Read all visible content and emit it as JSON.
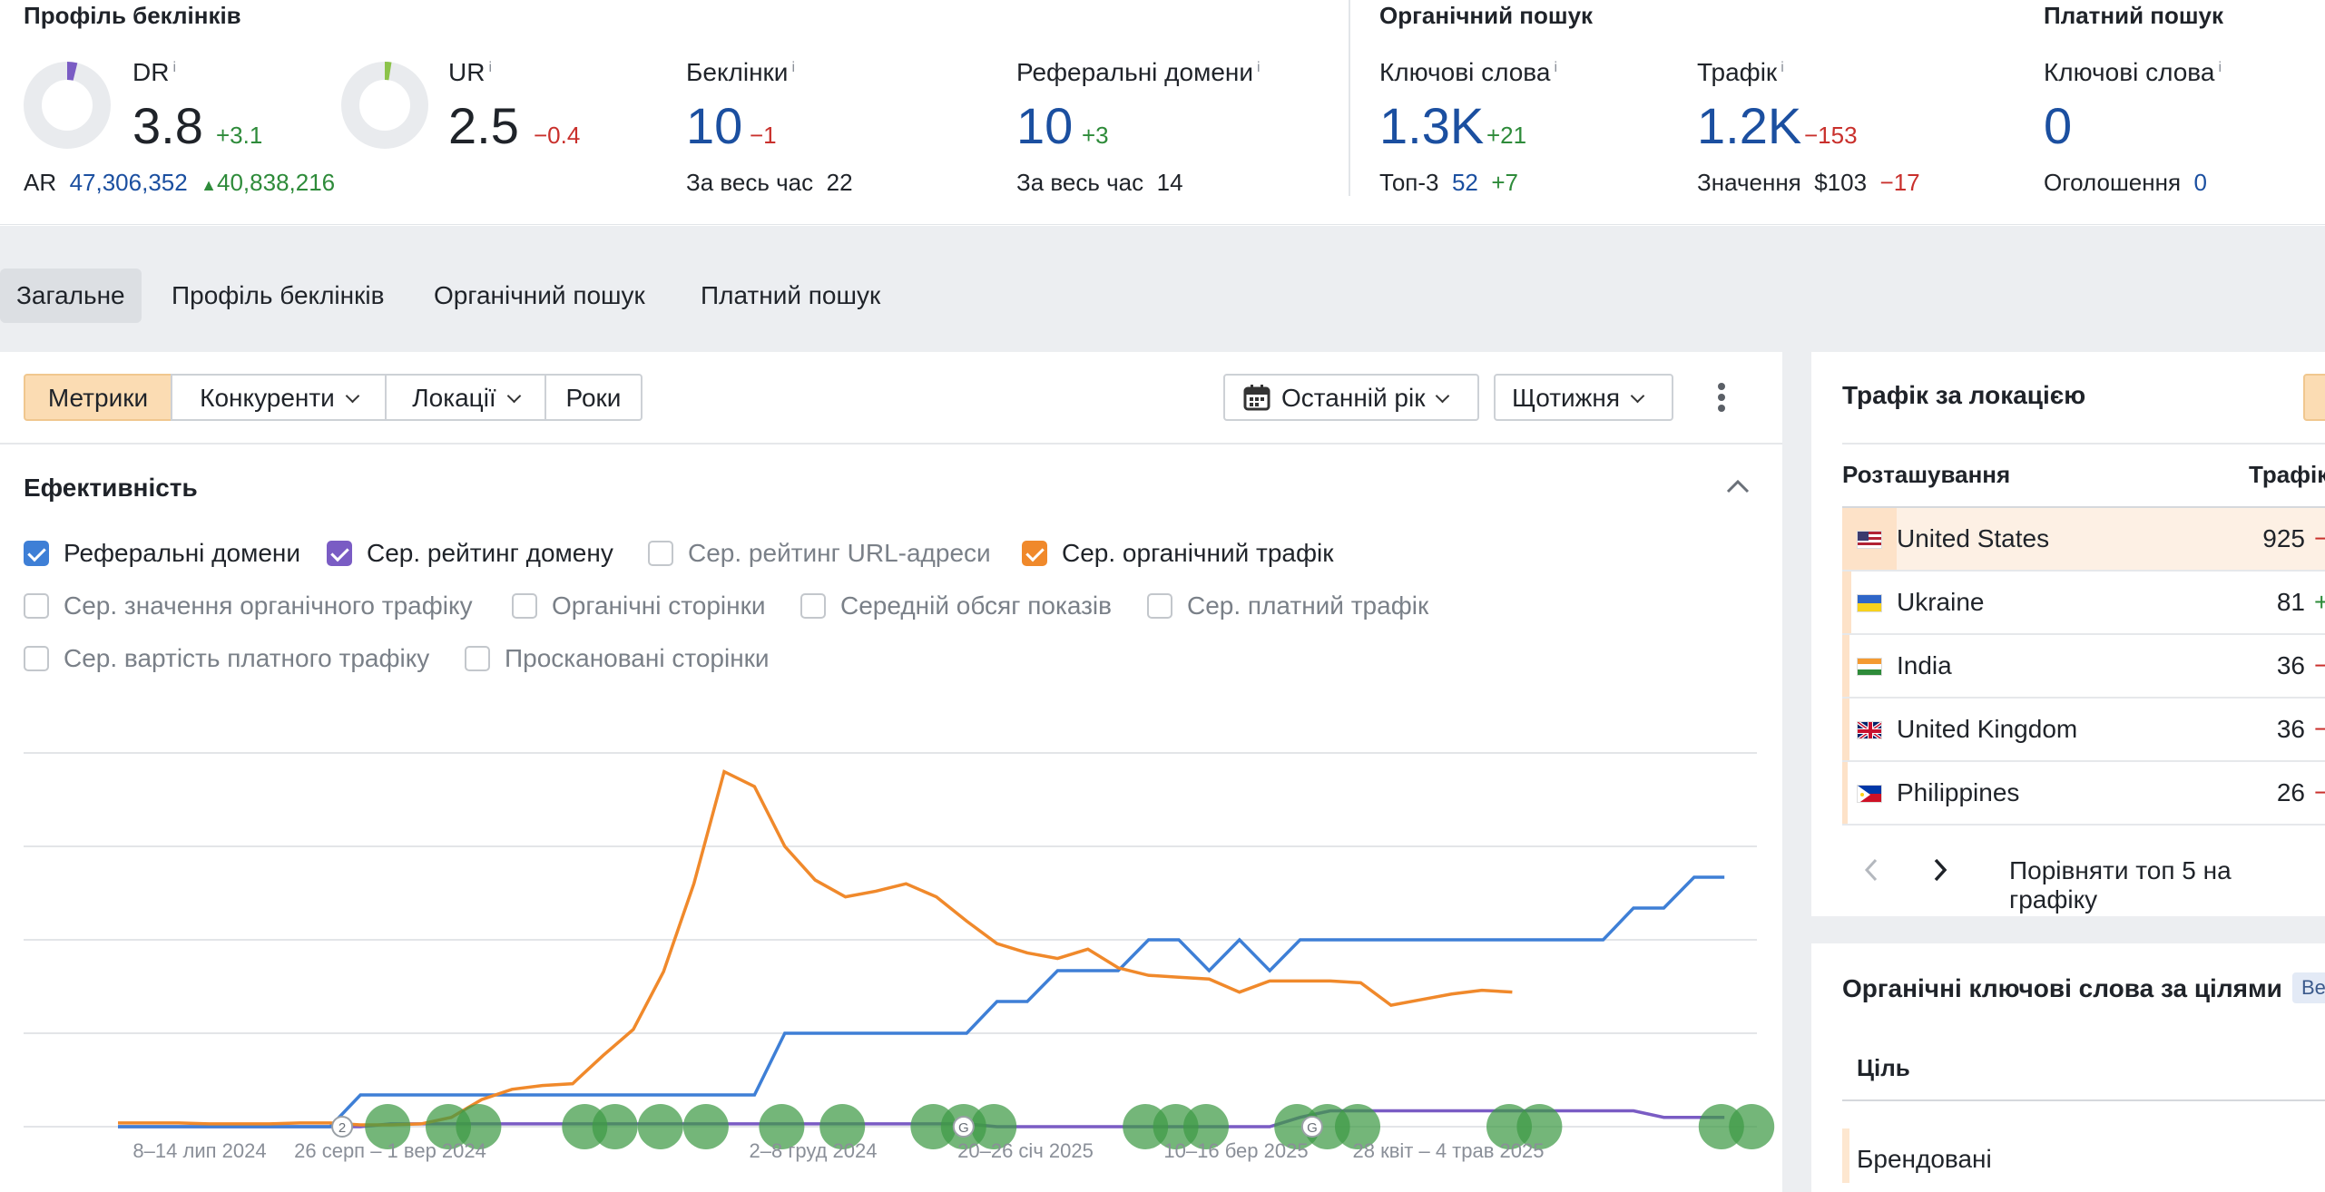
{
  "header": {
    "backlink_profile": {
      "title": "Профіль беклінків",
      "dr": {
        "label": "DR",
        "info": "i",
        "value": "3.8",
        "delta": "+3.1",
        "donut_fraction": 0.038,
        "color": "#7a5cc4"
      },
      "ur": {
        "label": "UR",
        "info": "i",
        "value": "2.5",
        "delta": "−0.4",
        "donut_fraction": 0.025,
        "color": "#8cc34a"
      },
      "ar": {
        "label": "AR",
        "value": "47,306,352",
        "delta": "40,838,216"
      },
      "backlinks": {
        "label": "Беклінки",
        "info": "i",
        "value": "10",
        "delta": "−1",
        "sub_label": "За весь час",
        "sub_value": "22"
      },
      "ref_domains": {
        "label": "Реферальні домени",
        "info": "i",
        "value": "10",
        "delta": "+3",
        "sub_label": "За весь час",
        "sub_value": "14"
      }
    },
    "organic": {
      "title": "Органічний пошук",
      "keywords": {
        "label": "Ключові слова",
        "info": "i",
        "value": "1.3K",
        "delta": "+21",
        "sub_label": "Топ-3",
        "sub_value": "52",
        "sub_delta": "+7"
      },
      "traffic": {
        "label": "Трафік",
        "info": "i",
        "value": "1.2K",
        "delta": "−153",
        "sub_label": "Значення",
        "sub_value": "$103",
        "sub_delta": "−17"
      }
    },
    "paid": {
      "title": "Платний пошук",
      "keywords": {
        "label": "Ключові слова",
        "info": "i",
        "value": "0",
        "sub_label": "Оголошення",
        "sub_value": "0"
      }
    }
  },
  "tabs": [
    {
      "label": "Загальне",
      "active": true
    },
    {
      "label": "Профіль беклінків"
    },
    {
      "label": "Органічний пошук"
    },
    {
      "label": "Платний пошук"
    }
  ],
  "toolbar": {
    "segments": [
      "Метрики",
      "Конкуренти",
      "Локації",
      "Роки"
    ],
    "period": "Останній рік",
    "interval": "Щотижня",
    "more_icon": "more-vertical-icon",
    "calendar_icon": "calendar-icon"
  },
  "performance": {
    "title": "Ефективність",
    "collapse_icon": "chevron-up-icon",
    "checkboxes": [
      {
        "label": "Реферальні домени",
        "checked": true,
        "color": "#3e7fd6"
      },
      {
        "label": "Сер. рейтинг домену",
        "checked": true,
        "color": "#7a5cc4"
      },
      {
        "label": "Сер. рейтинг URL-адреси",
        "checked": false
      },
      {
        "label": "Сер. органічний трафік",
        "checked": true,
        "color": "#f0892b"
      },
      {
        "label": "Сер. значення органічного трафіку",
        "checked": false
      },
      {
        "label": "Органічні сторінки",
        "checked": false
      },
      {
        "label": "Середній обсяг показів",
        "checked": false
      },
      {
        "label": "Сер. платний трафік",
        "checked": false
      },
      {
        "label": "Сер. вартість платного трафіку",
        "checked": false
      },
      {
        "label": "Проскановані сторінки",
        "checked": false
      }
    ]
  },
  "chart_data": {
    "type": "line",
    "x_tick_labels": [
      "8–14 лип 2024",
      "26 серп – 1 вер 2024",
      "2–8 груд 2024",
      "20–26 січ 2025",
      "10–16 бер 2025",
      "28 квіт – 4 трав 2025"
    ],
    "x_tick_index": [
      0,
      6,
      23,
      30,
      37,
      43
    ],
    "grid": true,
    "series": [
      {
        "name": "Реферальні домени",
        "color": "#3e7fd6",
        "values": [
          0,
          0,
          0,
          0,
          0,
          0,
          0,
          0,
          0.34,
          0.34,
          0.34,
          0.34,
          0.34,
          0.34,
          0.34,
          0.34,
          0.34,
          0.34,
          0.34,
          0.34,
          0.34,
          0.34,
          1.0,
          1.0,
          1.0,
          1.0,
          1.0,
          1.0,
          1.0,
          1.34,
          1.34,
          1.67,
          1.67,
          1.67,
          2.0,
          2.0,
          1.67,
          2.0,
          1.67,
          2.0,
          2.0,
          2.0,
          2.0,
          2.0,
          2.0,
          2.0,
          2.0,
          2.0,
          2.0,
          2.0,
          2.34,
          2.34,
          2.67,
          2.67
        ]
      },
      {
        "name": "Сер. рейтинг домену",
        "color": "#7a5cc4",
        "values": [
          0,
          0,
          0,
          0,
          0,
          0,
          0,
          0,
          0,
          0.03,
          0.03,
          0.03,
          0.03,
          0.03,
          0.03,
          0.03,
          0.03,
          0.03,
          0.03,
          0.03,
          0.03,
          0.03,
          0.03,
          0.03,
          0.03,
          0.03,
          0.03,
          0.03,
          0.03,
          0,
          0,
          0,
          0,
          0,
          0,
          0,
          0,
          0,
          0,
          0.1,
          0.17,
          0.17,
          0.17,
          0.17,
          0.17,
          0.17,
          0.17,
          0.17,
          0.17,
          0.17,
          0.17,
          0.1,
          0.1,
          0.1
        ]
      },
      {
        "name": "Сер. органічний трафік",
        "color": "#f0892b",
        "values": [
          0.04,
          0.04,
          0.03,
          0.03,
          0.03,
          0.04,
          0.04,
          0.03,
          0.02,
          0.03,
          0.03,
          0.03,
          0.03,
          0.03,
          0.03,
          0.03,
          0.03,
          0.03,
          0.03,
          0.03,
          0.03,
          0.03,
          0.03,
          0.03,
          0.03,
          0.03,
          0.03,
          0.03,
          0.03,
          0.03,
          0.03,
          0.03,
          0.03,
          0.03,
          0.03,
          0.03,
          0.03,
          0.03,
          0.03,
          0.03,
          0.03,
          0.03,
          0.03,
          0.03,
          0.03,
          0.03,
          0.03,
          0.03,
          0.03,
          0.03,
          0.03,
          0.03,
          0.03,
          0.03
        ]
      },
      {
        "name": "Сер. органічний трафік",
        "color": "#f0892b",
        "values": [
          0.04,
          0.04,
          0.04,
          0.03,
          0.03,
          0.03,
          0.04,
          0.04,
          0.02,
          0.02,
          0.03,
          0.1,
          0.29,
          0.4,
          0.44,
          0.46,
          0.76,
          1.04,
          1.66,
          2.6,
          3.8,
          3.64,
          3.0,
          2.64,
          2.46,
          2.52,
          2.6,
          2.46,
          2.2,
          1.96,
          1.86,
          1.8,
          1.9,
          1.7,
          1.62,
          1.6,
          1.58,
          1.44,
          1.56,
          1.56,
          1.56,
          1.54,
          1.3,
          1.36,
          1.42,
          1.46,
          1.44
        ]
      }
    ],
    "annotation_markers": [
      "2",
      "G",
      "G",
      "G",
      "G"
    ],
    "events_count": 22
  },
  "traffic_by_location": {
    "title": "Трафік за локацією",
    "col_location": "Розташування",
    "col_traffic": "Трафік",
    "rows": [
      {
        "country": "United States",
        "traffic": "925",
        "delta": "−",
        "flag": "us-flag-icon",
        "highlight": true
      },
      {
        "country": "Ukraine",
        "traffic": "81",
        "delta": "+",
        "flag": "ua-flag-icon"
      },
      {
        "country": "India",
        "traffic": "36",
        "delta": "−",
        "flag": "in-flag-icon"
      },
      {
        "country": "United Kingdom",
        "traffic": "36",
        "delta": "−",
        "flag": "gb-flag-icon"
      },
      {
        "country": "Philippines",
        "traffic": "26",
        "delta": "−",
        "flag": "ph-flag-icon"
      }
    ],
    "compare_label": "Порівняти топ 5 на графіку"
  },
  "keywords_by_intent": {
    "title": "Органічні ключові слова за цілями",
    "badge": "Beta",
    "col_intent": "Ціль",
    "row1": "Брендовані"
  }
}
